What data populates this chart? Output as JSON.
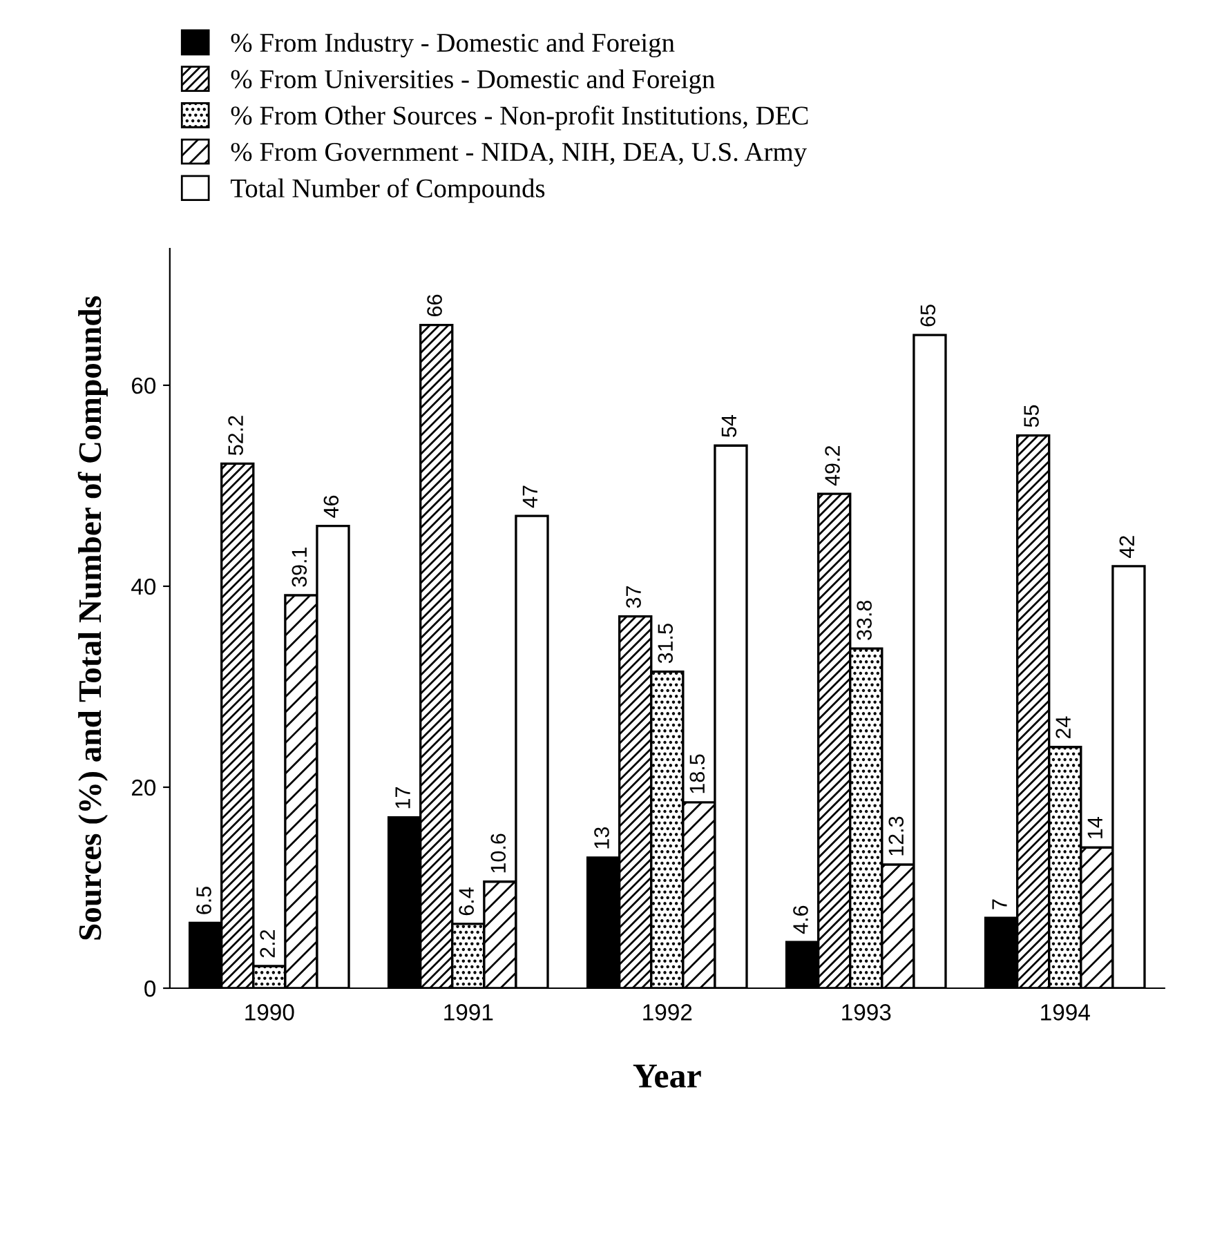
{
  "chart_data": {
    "type": "bar",
    "xlabel": "Year",
    "ylabel": "Sources (%) and Total Number of Compounds",
    "categories": [
      "1990",
      "1991",
      "1992",
      "1993",
      "1994"
    ],
    "series": [
      {
        "name": "% From Industry - Domestic and Foreign",
        "color": "#000000",
        "values": [
          6.5,
          17,
          13,
          4.6,
          7
        ]
      },
      {
        "name": "% From Universities - Domestic and Foreign",
        "color": "#000000",
        "values": [
          52.2,
          66,
          37,
          49.2,
          55
        ]
      },
      {
        "name": "% From Other Sources - Non-profit Institutions, DEC",
        "color": "#000000",
        "values": [
          2.2,
          6.4,
          31.5,
          33.8,
          24
        ]
      },
      {
        "name": "% From Government - NIDA, NIH, DEA, U.S. Army",
        "color": "#000000",
        "values": [
          39.1,
          10.6,
          18.5,
          12.3,
          14
        ]
      },
      {
        "name": "Total Number of Compounds",
        "color": "#ffffff",
        "values": [
          46,
          47,
          54,
          65,
          42
        ]
      }
    ],
    "ylim": [
      0,
      73.6
    ],
    "yticks": [
      0,
      20,
      40,
      60
    ],
    "data_labels": true,
    "legend": "top left",
    "grid": false
  }
}
